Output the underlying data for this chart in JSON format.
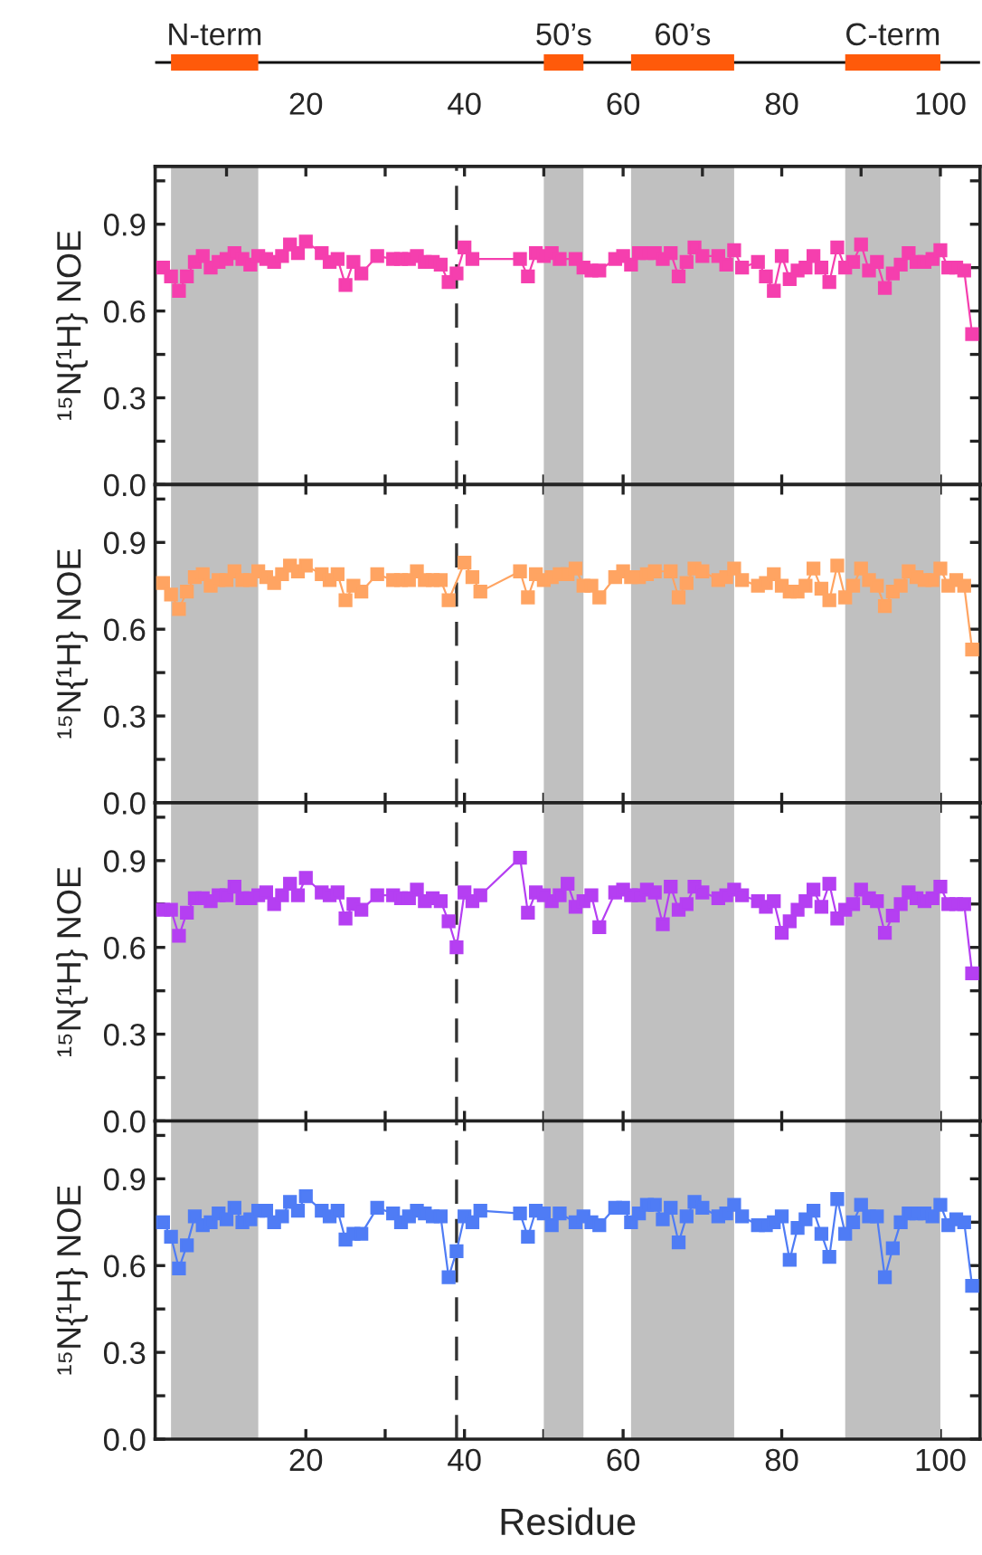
{
  "chart_data": [
    {
      "type": "line",
      "ylabel": "¹⁵N{¹H} NOE",
      "xlim": [
        1,
        105
      ],
      "x2lim": [
        1,
        105
      ],
      "xticks": [
        {
          "value": 10,
          "label": null
        },
        {
          "value": 20,
          "label": null
        },
        {
          "value": 30,
          "label": null
        },
        {
          "value": 40,
          "label": null
        },
        {
          "value": 50,
          "label": null
        },
        {
          "value": 60,
          "label": null
        },
        {
          "value": 70,
          "label": null
        },
        {
          "value": 80,
          "label": null
        },
        {
          "value": 90,
          "label": null
        },
        {
          "value": 100,
          "label": null
        }
      ],
      "x2ticks": [
        {
          "value": 10,
          "label": null
        },
        20,
        {
          "value": 30,
          "label": null
        },
        40,
        {
          "value": 50,
          "label": null
        },
        60,
        {
          "value": 70,
          "label": null
        },
        80,
        {
          "value": 90,
          "label": null
        },
        100
      ],
      "ylim": [
        0,
        1.1
      ],
      "yticks": [
        {
          "value": 0,
          "label": "0.0"
        },
        {
          "value": 0.15,
          "label": null
        },
        {
          "value": 0.3,
          "label": "0.3"
        },
        {
          "value": 0.45,
          "label": null
        },
        {
          "value": 0.6,
          "label": "0.6"
        },
        {
          "value": 0.75,
          "label": null
        },
        {
          "value": 0.9,
          "label": "0.9"
        },
        {
          "value": 1.05,
          "label": null
        }
      ],
      "tick_labels": "y",
      "marker": "square",
      "line_style": "solid",
      "grid": false,
      "legend": false,
      "annotations": [
        "N-term",
        "50’s",
        "60’s",
        "C-term"
      ],
      "bands": [
        {
          "axis": "x",
          "from": 3,
          "to": 14,
          "color": "#c0c0c0"
        },
        {
          "axis": "x",
          "from": 50,
          "to": 55,
          "color": "#c0c0c0"
        },
        {
          "axis": "x",
          "from": 61,
          "to": 74,
          "color": "#c0c0c0"
        },
        {
          "axis": "x",
          "from": 88,
          "to": 100,
          "color": "#c0c0c0"
        }
      ],
      "ref_lines": [
        {
          "axis": "x",
          "value": 39,
          "color": "#333333",
          "line_style": "dashed"
        }
      ],
      "series": [
        {
          "color": "#f53fae",
          "x": [
            2,
            3,
            4,
            5,
            6,
            7,
            8,
            9,
            10,
            11,
            12,
            13,
            14,
            15,
            16,
            17,
            18,
            19,
            20,
            22,
            23,
            24,
            25,
            26,
            27,
            29,
            31,
            32,
            33,
            34,
            35,
            36,
            37,
            38,
            39,
            40,
            41,
            47,
            48,
            49,
            50,
            51,
            52,
            54,
            55,
            56,
            57,
            59,
            60,
            61,
            62,
            63,
            64,
            65,
            66,
            67,
            68,
            69,
            70,
            72,
            73,
            74,
            75,
            77,
            78,
            79,
            80,
            81,
            82,
            83,
            84,
            85,
            86,
            87,
            88,
            89,
            90,
            91,
            92,
            93,
            94,
            95,
            96,
            97,
            98,
            99,
            100,
            101,
            102,
            103,
            104
          ],
          "values": [
            0.75,
            0.72,
            0.67,
            0.72,
            0.77,
            0.79,
            0.75,
            0.77,
            0.78,
            0.8,
            0.78,
            0.76,
            0.79,
            0.78,
            0.77,
            0.79,
            0.83,
            0.8,
            0.84,
            0.8,
            0.77,
            0.78,
            0.69,
            0.77,
            0.73,
            0.79,
            0.78,
            0.78,
            0.78,
            0.79,
            0.77,
            0.77,
            0.76,
            0.7,
            0.73,
            0.82,
            0.78,
            0.78,
            0.72,
            0.8,
            0.79,
            0.8,
            0.78,
            0.78,
            0.75,
            0.74,
            0.74,
            0.78,
            0.79,
            0.76,
            0.8,
            0.8,
            0.8,
            0.78,
            0.8,
            0.72,
            0.77,
            0.82,
            0.79,
            0.79,
            0.76,
            0.81,
            0.75,
            0.77,
            0.72,
            0.67,
            0.79,
            0.71,
            0.74,
            0.75,
            0.79,
            0.75,
            0.7,
            0.82,
            0.75,
            0.77,
            0.83,
            0.74,
            0.77,
            0.68,
            0.73,
            0.76,
            0.8,
            0.77,
            0.77,
            0.78,
            0.81,
            0.75,
            0.75,
            0.74,
            0.52
          ]
        }
      ]
    },
    {
      "type": "line",
      "ylabel": "¹⁵N{¹H} NOE",
      "xlim": [
        1,
        105
      ],
      "xticks": [
        {
          "value": 10,
          "label": null
        },
        {
          "value": 20,
          "label": null
        },
        {
          "value": 30,
          "label": null
        },
        {
          "value": 40,
          "label": null
        },
        {
          "value": 50,
          "label": null
        },
        {
          "value": 60,
          "label": null
        },
        {
          "value": 70,
          "label": null
        },
        {
          "value": 80,
          "label": null
        },
        {
          "value": 90,
          "label": null
        },
        {
          "value": 100,
          "label": null
        }
      ],
      "ylim": [
        0,
        1.1
      ],
      "yticks": [
        {
          "value": 0,
          "label": "0.0"
        },
        {
          "value": 0.15,
          "label": null
        },
        {
          "value": 0.3,
          "label": "0.3"
        },
        {
          "value": 0.45,
          "label": null
        },
        {
          "value": 0.6,
          "label": "0.6"
        },
        {
          "value": 0.75,
          "label": null
        },
        {
          "value": 0.9,
          "label": "0.9"
        },
        {
          "value": 1.05,
          "label": null
        }
      ],
      "tick_labels": "y",
      "marker": "square",
      "line_style": "solid",
      "grid": false,
      "legend": false,
      "bands": [
        {
          "axis": "x",
          "from": 3,
          "to": 14,
          "color": "#c0c0c0"
        },
        {
          "axis": "x",
          "from": 50,
          "to": 55,
          "color": "#c0c0c0"
        },
        {
          "axis": "x",
          "from": 61,
          "to": 74,
          "color": "#c0c0c0"
        },
        {
          "axis": "x",
          "from": 88,
          "to": 100,
          "color": "#c0c0c0"
        }
      ],
      "ref_lines": [
        {
          "axis": "x",
          "value": 39,
          "color": "#333333",
          "line_style": "dashed"
        }
      ],
      "series": [
        {
          "color": "#ffa462",
          "x": [
            2,
            3,
            4,
            5,
            6,
            7,
            8,
            9,
            10,
            11,
            12,
            13,
            14,
            15,
            16,
            17,
            18,
            19,
            20,
            22,
            23,
            24,
            25,
            26,
            27,
            29,
            31,
            32,
            33,
            34,
            35,
            36,
            37,
            38,
            40,
            41,
            42,
            47,
            48,
            49,
            50,
            51,
            52,
            53,
            54,
            55,
            56,
            57,
            59,
            60,
            61,
            62,
            63,
            64,
            66,
            67,
            68,
            69,
            70,
            72,
            73,
            74,
            75,
            77,
            78,
            79,
            80,
            81,
            82,
            83,
            84,
            85,
            86,
            87,
            88,
            89,
            90,
            91,
            92,
            93,
            94,
            95,
            96,
            97,
            98,
            99,
            100,
            101,
            102,
            103,
            104
          ],
          "values": [
            0.76,
            0.72,
            0.67,
            0.73,
            0.78,
            0.79,
            0.75,
            0.77,
            0.77,
            0.8,
            0.77,
            0.77,
            0.8,
            0.78,
            0.76,
            0.79,
            0.82,
            0.8,
            0.82,
            0.79,
            0.77,
            0.79,
            0.7,
            0.75,
            0.73,
            0.79,
            0.77,
            0.77,
            0.77,
            0.8,
            0.77,
            0.77,
            0.77,
            0.7,
            0.83,
            0.78,
            0.73,
            0.8,
            0.71,
            0.79,
            0.77,
            0.78,
            0.79,
            0.79,
            0.81,
            0.75,
            0.75,
            0.71,
            0.78,
            0.8,
            0.78,
            0.78,
            0.79,
            0.8,
            0.8,
            0.71,
            0.76,
            0.81,
            0.8,
            0.77,
            0.78,
            0.81,
            0.77,
            0.75,
            0.76,
            0.79,
            0.75,
            0.73,
            0.73,
            0.75,
            0.81,
            0.74,
            0.7,
            0.82,
            0.71,
            0.75,
            0.81,
            0.77,
            0.75,
            0.68,
            0.73,
            0.75,
            0.8,
            0.78,
            0.77,
            0.77,
            0.81,
            0.75,
            0.77,
            0.75,
            0.53
          ]
        }
      ]
    },
    {
      "type": "line",
      "ylabel": "¹⁵N{¹H} NOE",
      "xlim": [
        1,
        105
      ],
      "xticks": [
        {
          "value": 10,
          "label": null
        },
        {
          "value": 20,
          "label": null
        },
        {
          "value": 30,
          "label": null
        },
        {
          "value": 40,
          "label": null
        },
        {
          "value": 50,
          "label": null
        },
        {
          "value": 60,
          "label": null
        },
        {
          "value": 70,
          "label": null
        },
        {
          "value": 80,
          "label": null
        },
        {
          "value": 90,
          "label": null
        },
        {
          "value": 100,
          "label": null
        }
      ],
      "ylim": [
        0,
        1.1
      ],
      "yticks": [
        {
          "value": 0,
          "label": "0.0"
        },
        {
          "value": 0.15,
          "label": null
        },
        {
          "value": 0.3,
          "label": "0.3"
        },
        {
          "value": 0.45,
          "label": null
        },
        {
          "value": 0.6,
          "label": "0.6"
        },
        {
          "value": 0.75,
          "label": null
        },
        {
          "value": 0.9,
          "label": "0.9"
        },
        {
          "value": 1.05,
          "label": null
        }
      ],
      "tick_labels": "y",
      "marker": "square",
      "line_style": "solid",
      "grid": false,
      "legend": false,
      "bands": [
        {
          "axis": "x",
          "from": 3,
          "to": 14,
          "color": "#c0c0c0"
        },
        {
          "axis": "x",
          "from": 50,
          "to": 55,
          "color": "#c0c0c0"
        },
        {
          "axis": "x",
          "from": 61,
          "to": 74,
          "color": "#c0c0c0"
        },
        {
          "axis": "x",
          "from": 88,
          "to": 100,
          "color": "#c0c0c0"
        }
      ],
      "ref_lines": [
        {
          "axis": "x",
          "value": 39,
          "color": "#333333",
          "line_style": "dashed"
        }
      ],
      "series": [
        {
          "color": "#b53ff2",
          "x": [
            2,
            3,
            4,
            5,
            6,
            7,
            8,
            9,
            10,
            11,
            12,
            13,
            14,
            15,
            16,
            17,
            18,
            19,
            20,
            22,
            23,
            24,
            25,
            26,
            27,
            29,
            31,
            32,
            33,
            34,
            35,
            36,
            37,
            38,
            39,
            40,
            41,
            42,
            47,
            48,
            49,
            50,
            51,
            52,
            53,
            54,
            55,
            56,
            57,
            59,
            60,
            61,
            62,
            63,
            64,
            65,
            66,
            67,
            68,
            69,
            70,
            72,
            73,
            74,
            75,
            77,
            78,
            79,
            80,
            81,
            82,
            83,
            84,
            85,
            86,
            87,
            88,
            89,
            90,
            91,
            92,
            93,
            94,
            95,
            96,
            97,
            98,
            99,
            100,
            101,
            102,
            103,
            104
          ],
          "values": [
            0.73,
            0.73,
            0.64,
            0.72,
            0.77,
            0.77,
            0.76,
            0.78,
            0.78,
            0.81,
            0.77,
            0.77,
            0.78,
            0.79,
            0.75,
            0.78,
            0.82,
            0.78,
            0.84,
            0.79,
            0.78,
            0.79,
            0.7,
            0.75,
            0.73,
            0.78,
            0.78,
            0.77,
            0.77,
            0.8,
            0.76,
            0.77,
            0.76,
            0.69,
            0.6,
            0.79,
            0.76,
            0.78,
            0.91,
            0.72,
            0.79,
            0.78,
            0.76,
            0.78,
            0.82,
            0.74,
            0.76,
            0.78,
            0.67,
            0.79,
            0.8,
            0.78,
            0.78,
            0.8,
            0.79,
            0.68,
            0.81,
            0.73,
            0.75,
            0.81,
            0.79,
            0.77,
            0.78,
            0.8,
            0.78,
            0.76,
            0.74,
            0.76,
            0.65,
            0.69,
            0.73,
            0.76,
            0.8,
            0.74,
            0.82,
            0.7,
            0.73,
            0.75,
            0.8,
            0.77,
            0.76,
            0.65,
            0.71,
            0.75,
            0.79,
            0.77,
            0.76,
            0.77,
            0.81,
            0.75,
            0.75,
            0.75,
            0.51
          ]
        }
      ]
    },
    {
      "type": "line",
      "ylabel": "¹⁵N{¹H} NOE",
      "xlabel": "Residue",
      "xlim": [
        1,
        105
      ],
      "xticks": [
        {
          "value": 10,
          "label": null
        },
        20,
        {
          "value": 30,
          "label": null
        },
        40,
        {
          "value": 50,
          "label": null
        },
        60,
        {
          "value": 70,
          "label": null
        },
        80,
        {
          "value": 90,
          "label": null
        },
        100
      ],
      "ylim": [
        0,
        1.1
      ],
      "yticks": [
        {
          "value": 0,
          "label": "0.0"
        },
        {
          "value": 0.15,
          "label": null
        },
        {
          "value": 0.3,
          "label": "0.3"
        },
        {
          "value": 0.45,
          "label": null
        },
        {
          "value": 0.6,
          "label": "0.6"
        },
        {
          "value": 0.75,
          "label": null
        },
        {
          "value": 0.9,
          "label": "0.9"
        },
        {
          "value": 1.05,
          "label": null
        }
      ],
      "marker": "square",
      "line_style": "solid",
      "grid": false,
      "legend": false,
      "bands": [
        {
          "axis": "x",
          "from": 3,
          "to": 14,
          "color": "#c0c0c0"
        },
        {
          "axis": "x",
          "from": 50,
          "to": 55,
          "color": "#c0c0c0"
        },
        {
          "axis": "x",
          "from": 61,
          "to": 74,
          "color": "#c0c0c0"
        },
        {
          "axis": "x",
          "from": 88,
          "to": 100,
          "color": "#c0c0c0"
        }
      ],
      "ref_lines": [
        {
          "axis": "x",
          "value": 39,
          "color": "#333333",
          "line_style": "dashed"
        }
      ],
      "series": [
        {
          "color": "#4f7cf5",
          "x": [
            2,
            3,
            4,
            5,
            6,
            7,
            8,
            9,
            10,
            11,
            12,
            13,
            14,
            15,
            16,
            17,
            18,
            19,
            20,
            22,
            23,
            24,
            25,
            26,
            27,
            29,
            31,
            32,
            33,
            34,
            35,
            36,
            37,
            38,
            39,
            40,
            41,
            42,
            47,
            48,
            49,
            50,
            51,
            52,
            54,
            55,
            56,
            57,
            59,
            60,
            61,
            62,
            63,
            64,
            65,
            66,
            67,
            68,
            69,
            70,
            72,
            73,
            74,
            75,
            77,
            78,
            79,
            80,
            81,
            82,
            83,
            84,
            85,
            86,
            87,
            88,
            89,
            90,
            91,
            92,
            93,
            94,
            95,
            96,
            97,
            98,
            99,
            100,
            101,
            102,
            103,
            104
          ],
          "values": [
            0.75,
            0.7,
            0.59,
            0.67,
            0.77,
            0.74,
            0.75,
            0.78,
            0.76,
            0.8,
            0.75,
            0.76,
            0.79,
            0.79,
            0.75,
            0.77,
            0.82,
            0.79,
            0.84,
            0.79,
            0.77,
            0.79,
            0.69,
            0.71,
            0.71,
            0.8,
            0.78,
            0.75,
            0.77,
            0.79,
            0.78,
            0.77,
            0.77,
            0.56,
            0.65,
            0.77,
            0.75,
            0.79,
            0.78,
            0.7,
            0.79,
            0.78,
            0.74,
            0.78,
            0.75,
            0.77,
            0.75,
            0.74,
            0.8,
            0.8,
            0.75,
            0.78,
            0.81,
            0.81,
            0.76,
            0.8,
            0.68,
            0.77,
            0.82,
            0.8,
            0.77,
            0.78,
            0.81,
            0.77,
            0.74,
            0.74,
            0.75,
            0.77,
            0.62,
            0.73,
            0.76,
            0.79,
            0.71,
            0.63,
            0.83,
            0.71,
            0.75,
            0.81,
            0.77,
            0.77,
            0.56,
            0.66,
            0.75,
            0.78,
            0.78,
            0.78,
            0.77,
            0.81,
            0.74,
            0.76,
            0.75,
            0.53
          ]
        }
      ]
    }
  ]
}
